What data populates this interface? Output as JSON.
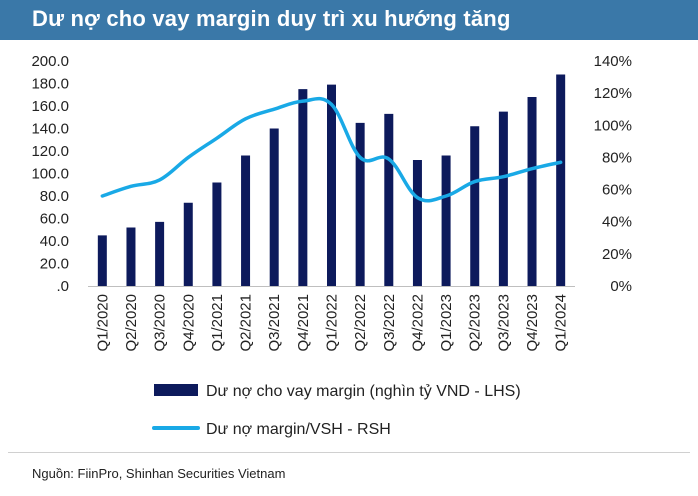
{
  "title": "Dư nợ cho vay margin duy trì xu hướng tăng",
  "source": "Nguồn: FiinPro, Shinhan Securities Vietnam",
  "colors": {
    "header_bg": "#3a78a8",
    "bar": "#0d1a5c",
    "line": "#19a9e6"
  },
  "chart_data": {
    "type": "bar",
    "categories": [
      "Q1/2020",
      "Q2/2020",
      "Q3/2020",
      "Q4/2020",
      "Q1/2021",
      "Q2/2021",
      "Q3/2021",
      "Q4/2021",
      "Q1/2022",
      "Q2/2022",
      "Q3/2022",
      "Q4/2022",
      "Q1/2023",
      "Q2/2023",
      "Q3/2023",
      "Q4/2023",
      "Q1/2024"
    ],
    "series": [
      {
        "name": "Dư nợ cho vay margin (nghìn tỷ VND - LHS)",
        "type": "bar",
        "axis": "left",
        "values": [
          45,
          52,
          57,
          74,
          92,
          116,
          140,
          175,
          179,
          145,
          153,
          112,
          116,
          142,
          155,
          168,
          188
        ]
      },
      {
        "name": "Dư nợ margin/VSH - RSH",
        "type": "line",
        "axis": "right",
        "values": [
          56,
          62,
          66,
          80,
          92,
          104,
          110,
          115,
          113,
          80,
          79,
          55,
          56,
          65,
          68,
          73,
          77
        ]
      }
    ],
    "y_left": {
      "range": [
        0,
        200
      ],
      "ticks": [
        0,
        20,
        40,
        60,
        80,
        100,
        120,
        140,
        160,
        180,
        200
      ],
      "tick_labels": [
        ".0",
        "20.0",
        "40.0",
        "60.0",
        "80.0",
        "100.0",
        "120.0",
        "140.0",
        "160.0",
        "180.0",
        "200.0"
      ]
    },
    "y_right": {
      "range": [
        0,
        140
      ],
      "ticks": [
        0,
        20,
        40,
        60,
        80,
        100,
        120,
        140
      ],
      "tick_labels": [
        "0%",
        "20%",
        "40%",
        "60%",
        "80%",
        "100%",
        "120%",
        "140%"
      ]
    },
    "legend_position": "bottom"
  }
}
